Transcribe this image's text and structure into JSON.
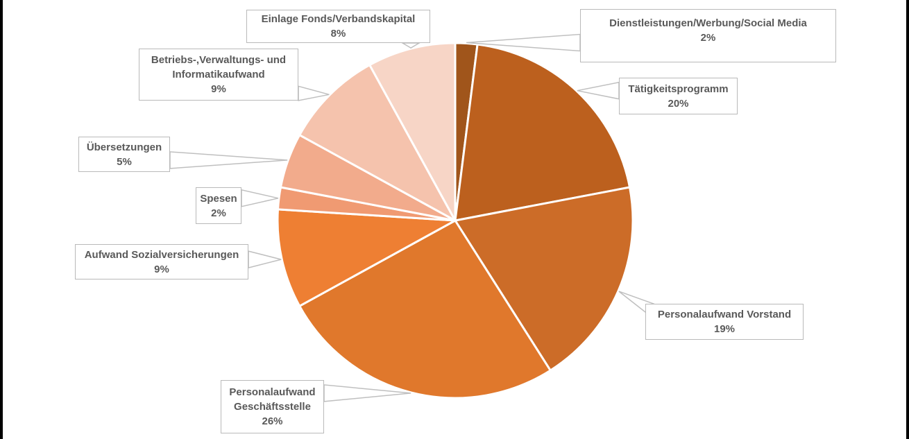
{
  "chart_data": {
    "type": "pie",
    "title": "",
    "legend_position": "none",
    "start_angle_deg": 0,
    "direction": "clockwise",
    "background_color": "#FFFFFF",
    "slice_border_color": "#FFFFFF",
    "label_text_color": "#595959",
    "label_border_color": "#BFBFBF",
    "slices": [
      {
        "label": "Dienstleistungen/Werbung/Social Media",
        "label_lines": [
          "Dienstleistungen/Werbung/Social Media"
        ],
        "value_pct": 2,
        "pct_label": "2%",
        "color": "#A0551B"
      },
      {
        "label": "Tätigkeitsprogramm",
        "label_lines": [
          "Tätigkeitsprogramm"
        ],
        "value_pct": 20,
        "pct_label": "20%",
        "color": "#BC601E"
      },
      {
        "label": "Personalaufwand Vorstand",
        "label_lines": [
          "Personalaufwand Vorstand"
        ],
        "value_pct": 19,
        "pct_label": "19%",
        "color": "#CC6C28"
      },
      {
        "label": "Personalaufwand Geschäftsstelle",
        "label_lines": [
          "Personalaufwand",
          "Geschäftsstelle"
        ],
        "value_pct": 26,
        "pct_label": "26%",
        "color": "#E0782C"
      },
      {
        "label": "Aufwand Sozialversicherungen",
        "label_lines": [
          "Aufwand Sozialversicherungen"
        ],
        "value_pct": 9,
        "pct_label": "9%",
        "color": "#EE7F33"
      },
      {
        "label": "Spesen",
        "label_lines": [
          "Spesen"
        ],
        "value_pct": 2,
        "pct_label": "2%",
        "color": "#F09A72"
      },
      {
        "label": "Übersetzungen",
        "label_lines": [
          "Übersetzungen"
        ],
        "value_pct": 5,
        "pct_label": "5%",
        "color": "#F2AB8C"
      },
      {
        "label": "Betriebs-,Verwaltungs- und Informatikaufwand",
        "label_lines": [
          "Betriebs-,Verwaltungs- und",
          "Informatikaufwand"
        ],
        "value_pct": 9,
        "pct_label": "9%",
        "color": "#F5C3AD"
      },
      {
        "label": "Einlage Fonds/Verbandskapital",
        "label_lines": [
          "Einlage Fonds/Verbandskapital"
        ],
        "value_pct": 8,
        "pct_label": "8%",
        "color": "#F7D5C6"
      }
    ]
  }
}
